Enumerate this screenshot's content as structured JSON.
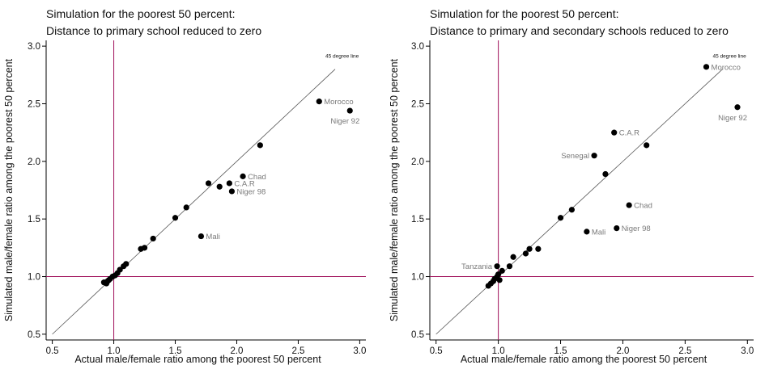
{
  "chart_data": [
    {
      "type": "scatter",
      "title_line1": "Simulation for the poorest 50 percent:",
      "title_line2": "Distance to primary school reduced to zero",
      "xlabel": "Actual male/female ratio among the poorest 50 percent",
      "ylabel": "Simulated male/female ratio among the poorest 50 percent",
      "xlim": [
        0.45,
        3.05
      ],
      "ylim": [
        0.45,
        3.05
      ],
      "xticks": [
        "0.5",
        "1.0",
        "1.5",
        "2.0",
        "2.5",
        "3.0"
      ],
      "yticks": [
        "0.5",
        "1.0",
        "1.5",
        "2.0",
        "2.5",
        "3.0"
      ],
      "reference_line_label": "45 degree line",
      "ref_x": 1.0,
      "ref_y": 1.0,
      "colors": {
        "reference": "#a0105a",
        "points": "#000000",
        "point_labels": "#7a7a7a",
        "diagonal": "#555555"
      },
      "points": [
        {
          "x": 0.92,
          "y": 0.95
        },
        {
          "x": 0.94,
          "y": 0.94
        },
        {
          "x": 0.95,
          "y": 0.96
        },
        {
          "x": 0.96,
          "y": 0.97
        },
        {
          "x": 0.97,
          "y": 0.98
        },
        {
          "x": 0.99,
          "y": 1.0
        },
        {
          "x": 1.01,
          "y": 1.01
        },
        {
          "x": 1.03,
          "y": 1.03
        },
        {
          "x": 1.05,
          "y": 1.06
        },
        {
          "x": 1.08,
          "y": 1.09
        },
        {
          "x": 1.1,
          "y": 1.11
        },
        {
          "x": 1.22,
          "y": 1.24
        },
        {
          "x": 1.25,
          "y": 1.25
        },
        {
          "x": 1.32,
          "y": 1.33
        },
        {
          "x": 1.5,
          "y": 1.51
        },
        {
          "x": 1.59,
          "y": 1.6
        },
        {
          "x": 1.71,
          "y": 1.35,
          "label": "Mali"
        },
        {
          "x": 1.77,
          "y": 1.81
        },
        {
          "x": 1.86,
          "y": 1.78
        },
        {
          "x": 1.94,
          "y": 1.81,
          "label": "C.A.R"
        },
        {
          "x": 1.96,
          "y": 1.74,
          "label": "Niger 98"
        },
        {
          "x": 2.05,
          "y": 1.87,
          "label": "Chad"
        },
        {
          "x": 2.19,
          "y": 2.14
        },
        {
          "x": 2.67,
          "y": 2.52,
          "label": "Morocco"
        },
        {
          "x": 2.92,
          "y": 2.44,
          "label": "Niger 92"
        }
      ]
    },
    {
      "type": "scatter",
      "title_line1": "Simulation for the poorest 50 percent:",
      "title_line2": "Distance to primary and secondary schools reduced to zero",
      "xlabel": "Actual male/female ratio among the poorest 50 percent",
      "ylabel": "Simulated male/female ratio among the poorest 50 percent",
      "xlim": [
        0.45,
        3.05
      ],
      "ylim": [
        0.45,
        3.05
      ],
      "xticks": [
        "0.5",
        "1.0",
        "1.5",
        "2.0",
        "2.5",
        "3.0"
      ],
      "yticks": [
        "0.5",
        "1.0",
        "1.5",
        "2.0",
        "2.5",
        "3.0"
      ],
      "reference_line_label": "45 degree line",
      "ref_x": 1.0,
      "ref_y": 1.0,
      "colors": {
        "reference": "#a0105a",
        "points": "#000000",
        "point_labels": "#7a7a7a",
        "diagonal": "#555555"
      },
      "points": [
        {
          "x": 0.92,
          "y": 0.92
        },
        {
          "x": 0.94,
          "y": 0.94
        },
        {
          "x": 0.96,
          "y": 0.96
        },
        {
          "x": 0.97,
          "y": 0.98
        },
        {
          "x": 0.99,
          "y": 1.0
        },
        {
          "x": 1.0,
          "y": 1.02
        },
        {
          "x": 1.01,
          "y": 0.97
        },
        {
          "x": 1.03,
          "y": 1.05
        },
        {
          "x": 0.99,
          "y": 1.09,
          "label": "Tanzania"
        },
        {
          "x": 1.09,
          "y": 1.09
        },
        {
          "x": 1.12,
          "y": 1.17
        },
        {
          "x": 1.22,
          "y": 1.2
        },
        {
          "x": 1.25,
          "y": 1.24
        },
        {
          "x": 1.32,
          "y": 1.24
        },
        {
          "x": 1.5,
          "y": 1.51
        },
        {
          "x": 1.59,
          "y": 1.58
        },
        {
          "x": 1.71,
          "y": 1.39,
          "label": "Mali"
        },
        {
          "x": 1.95,
          "y": 1.42,
          "label": "Niger 98"
        },
        {
          "x": 2.05,
          "y": 1.62,
          "label": "Chad"
        },
        {
          "x": 1.86,
          "y": 1.89
        },
        {
          "x": 1.77,
          "y": 2.05,
          "label": "Senegal"
        },
        {
          "x": 1.93,
          "y": 2.25,
          "label": "C.A.R"
        },
        {
          "x": 2.19,
          "y": 2.14
        },
        {
          "x": 2.67,
          "y": 2.82,
          "label": "Morocco"
        },
        {
          "x": 2.92,
          "y": 2.47,
          "label": "Niger 92"
        }
      ]
    }
  ]
}
